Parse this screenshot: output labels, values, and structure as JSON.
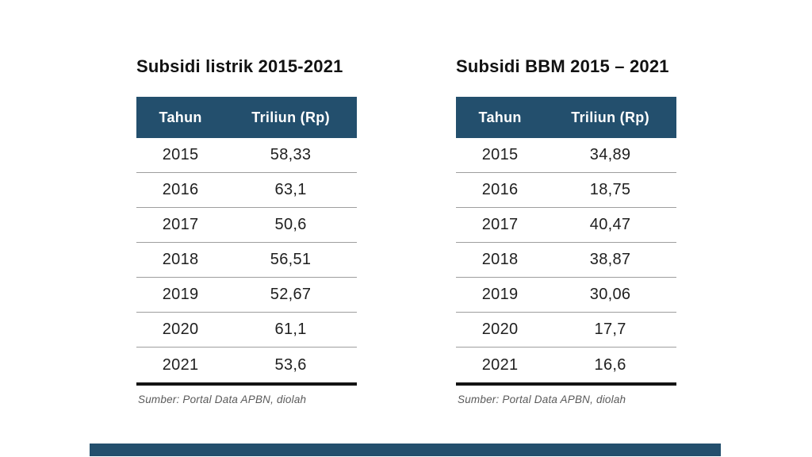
{
  "page": {
    "background": "#ffffff"
  },
  "colors": {
    "header_bg": "#234f6d",
    "header_text": "#ffffff",
    "title_text": "#121212",
    "cell_text": "#1f1f1f",
    "row_separator": "#9e9e9e",
    "closing_rule": "#141414",
    "source_text": "#5a5a5a",
    "footer_bar": "#234f6d"
  },
  "tables": [
    {
      "title": "Subsidi listrik 2015-2021",
      "columns": [
        "Tahun",
        "Triliun (Rp)"
      ],
      "rows": [
        [
          "2015",
          "58,33"
        ],
        [
          "2016",
          "63,1"
        ],
        [
          "2017",
          "50,6"
        ],
        [
          "2018",
          "56,51"
        ],
        [
          "2019",
          "52,67"
        ],
        [
          "2020",
          "61,1"
        ],
        [
          "2021",
          "53,6"
        ]
      ],
      "source": "Sumber: Portal Data APBN, diolah"
    },
    {
      "title": "Subsidi BBM 2015 – 2021",
      "columns": [
        "Tahun",
        "Triliun (Rp)"
      ],
      "rows": [
        [
          "2015",
          "34,89"
        ],
        [
          "2016",
          "18,75"
        ],
        [
          "2017",
          "40,47"
        ],
        [
          "2018",
          "38,87"
        ],
        [
          "2019",
          "30,06"
        ],
        [
          "2020",
          "17,7"
        ],
        [
          "2021",
          "16,6"
        ]
      ],
      "source": "Sumber: Portal Data APBN, diolah"
    }
  ],
  "chart_data": [
    {
      "type": "table",
      "title": "Subsidi listrik 2015-2021",
      "columns": [
        "Tahun",
        "Triliun (Rp)"
      ],
      "categories": [
        "2015",
        "2016",
        "2017",
        "2018",
        "2019",
        "2020",
        "2021"
      ],
      "values": [
        58.33,
        63.1,
        50.6,
        56.51,
        52.67,
        61.1,
        53.6
      ],
      "value_unit": "Triliun (Rp)",
      "source": "Sumber: Portal Data APBN, diolah"
    },
    {
      "type": "table",
      "title": "Subsidi BBM 2015 – 2021",
      "columns": [
        "Tahun",
        "Triliun (Rp)"
      ],
      "categories": [
        "2015",
        "2016",
        "2017",
        "2018",
        "2019",
        "2020",
        "2021"
      ],
      "values": [
        34.89,
        18.75,
        40.47,
        38.87,
        30.06,
        17.7,
        16.6
      ],
      "value_unit": "Triliun (Rp)",
      "source": "Sumber: Portal Data APBN, diolah"
    }
  ]
}
